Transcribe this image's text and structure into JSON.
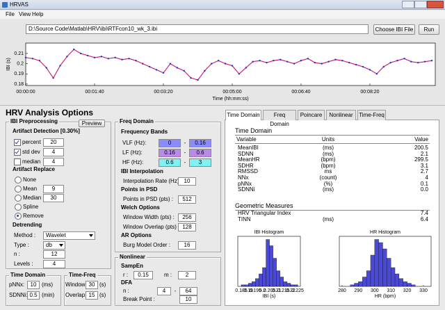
{
  "window_title": "HRVAS",
  "menu": [
    "File",
    "View",
    "Help"
  ],
  "file_path": "D:\\Source Code\\Matlab\\HRV\\ibi\\RTFcon10_wk_3.ibi",
  "buttons": {
    "choose": "Choose IBI File",
    "run": "Run"
  },
  "ibi_plot": {
    "x": [
      0,
      10,
      20,
      30,
      40,
      50,
      60,
      70,
      80,
      90,
      100,
      110,
      120,
      130,
      140,
      150,
      160,
      170,
      180,
      190,
      200,
      210,
      220,
      230,
      240,
      250,
      260,
      270,
      280,
      290,
      300,
      310,
      320,
      330,
      340,
      350,
      360,
      370,
      380,
      390,
      400,
      410,
      420,
      430,
      440,
      450,
      460,
      470,
      480,
      490,
      500,
      510,
      520,
      530,
      540,
      550,
      560,
      570,
      580,
      590
    ],
    "values": [
      0.206,
      0.205,
      0.203,
      0.196,
      0.186,
      0.198,
      0.207,
      0.214,
      0.21,
      0.208,
      0.206,
      0.207,
      0.205,
      0.206,
      0.204,
      0.205,
      0.203,
      0.2,
      0.197,
      0.194,
      0.191,
      0.2,
      0.196,
      0.193,
      0.186,
      0.184,
      0.193,
      0.2,
      0.203,
      0.2,
      0.198,
      0.19,
      0.196,
      0.202,
      0.203,
      0.201,
      0.203,
      0.204,
      0.202,
      0.2,
      0.203,
      0.205,
      0.201,
      0.2,
      0.202,
      0.204,
      0.203,
      0.201,
      0.199,
      0.197,
      0.194,
      0.19,
      0.197,
      0.201,
      0.203,
      0.205,
      0.202,
      0.201,
      0.202,
      0.203
    ],
    "point_color": "#1f2fd0",
    "line_color": "#d0207a",
    "xlim": [
      0,
      595
    ],
    "ylim": [
      0.1786,
      0.2202
    ],
    "xticks": [
      {
        "value": 0,
        "label": "00:00:00"
      },
      {
        "value": 100,
        "label": "00:01:40"
      },
      {
        "value": 200,
        "label": "00:03:20"
      },
      {
        "value": 300,
        "label": "00:05:00"
      },
      {
        "value": 400,
        "label": "00:06:40"
      },
      {
        "value": 500,
        "label": "00:08:20"
      }
    ],
    "yticks": [
      0.18,
      0.19,
      0.2,
      0.21
    ],
    "xlabel": "Time (hh:mm:ss)",
    "ylabel": "IBI (s)"
  },
  "options_title": "HRV Analysis Options",
  "preprocessing": {
    "title": "IBI Preprocessing",
    "preview": "Preview",
    "detection_title": "Artifact Detection [0.30%]",
    "detection": [
      {
        "label": "percent",
        "value": 20,
        "checked": true
      },
      {
        "label": "std dev",
        "value": 4,
        "checked": true
      },
      {
        "label": "median",
        "value": 4,
        "checked": false
      }
    ],
    "replace_title": "Artifact Replace",
    "replace": [
      {
        "label": "None",
        "selected": false
      },
      {
        "label": "Mean",
        "value": 9,
        "selected": false
      },
      {
        "label": "Median",
        "value": 30,
        "selected": false
      },
      {
        "label": "Spline",
        "selected": false
      },
      {
        "label": "Remove",
        "selected": true
      }
    ],
    "detrend_title": "Detrending",
    "detrend": [
      {
        "label": "Method :",
        "value": "Wavelet",
        "dropdown": true
      },
      {
        "label": "Type :",
        "value": "db",
        "dropdown": true
      },
      {
        "label": "n :",
        "value": 12
      },
      {
        "label": "Levels :",
        "value": 4
      }
    ]
  },
  "time_domain_opts": {
    "title": "Time Domain",
    "rows": [
      {
        "label": "pNNx:",
        "value": 10,
        "unit": "(ms)"
      },
      {
        "label": "SDNNi:",
        "value": 0.5,
        "unit": "(min)"
      }
    ]
  },
  "time_freq_opts": {
    "title": "Time-Freq",
    "rows": [
      {
        "label": "Window:",
        "value": 30,
        "unit": "(s)"
      },
      {
        "label": "Overlap:",
        "value": 15,
        "unit": "(s)"
      }
    ]
  },
  "freq_opts": {
    "title": "Freq Domain",
    "bands_title": "Frequency Bands",
    "range_sep": "-",
    "bands": [
      {
        "label": "VLF (Hz):",
        "from": 0,
        "to": 0.16,
        "color": "#8b8bff"
      },
      {
        "label": "LF (Hz):",
        "from": 0.16,
        "to": 0.6,
        "color": "#b98ae8"
      },
      {
        "label": "HF (Hz):",
        "from": 0.6,
        "to": 3,
        "color": "#7ff3f3"
      }
    ],
    "sections": [
      {
        "title": "IBI Interpolation",
        "fields": [
          {
            "label": "Interpolation Rate (Hz) :",
            "value": 10
          }
        ]
      },
      {
        "title": "Points in PSD",
        "fields": [
          {
            "label": "Points in PSD (pts) :",
            "value": 512
          }
        ]
      },
      {
        "title": "Welch Options",
        "fields": [
          {
            "label": "Window Width (pts) :",
            "value": 256
          },
          {
            "label": "Window Overlap (pts) :",
            "value": 128
          }
        ]
      },
      {
        "title": "AR Options",
        "fields": [
          {
            "label": "Burg Model Order :",
            "value": 16
          }
        ]
      }
    ]
  },
  "nonlinear_opts": {
    "title": "Nonlinear",
    "sampen_title": "SampEn",
    "r_label": "r :",
    "r": 0.15,
    "m_label": "m :",
    "m": 2,
    "dfa_title": "DFA",
    "n_label": "n :",
    "n_from": 4,
    "range_sep": "-",
    "n_to": 64,
    "bp_label": "Break Point :",
    "bp": 10
  },
  "tabs": [
    "Time Domain",
    "Freq Domain",
    "Poincare",
    "Nonlinear",
    "Time-Freq"
  ],
  "results": {
    "title": "Time Domain",
    "header": [
      "Variable",
      "Units",
      "Value"
    ],
    "rows": [
      {
        "variable": "MeanIBI",
        "units": "(ms)",
        "value": "200.5"
      },
      {
        "variable": "SDNN",
        "units": "(ms)",
        "value": "2.1"
      },
      {
        "variable": "MeanHR",
        "units": "(bpm)",
        "value": "299.5"
      },
      {
        "variable": "SDHR",
        "units": "(bpm)",
        "value": "3.1"
      },
      {
        "variable": "RMSSD",
        "units": "ms",
        "value": "2.7"
      },
      {
        "variable": "NNx",
        "units": "(count)",
        "value": "4"
      },
      {
        "variable": "pNNx",
        "units": "(%)",
        "value": "0.1"
      },
      {
        "variable": "SDNNi",
        "units": "(ms)",
        "value": "0.0"
      }
    ],
    "geo_title": "Geometric Measures",
    "geo_rows": [
      {
        "variable": "HRV Triangular Index",
        "value": "7.4"
      },
      {
        "variable": "TINN",
        "units": "(ms)",
        "value": "6.4"
      }
    ]
  },
  "ibi_hist": {
    "title": "IBI Histogram",
    "color": "#4a4ad6",
    "bins": [
      0.185,
      0.1875,
      0.19,
      0.1925,
      0.195,
      0.1975,
      0.2,
      0.2025,
      0.205,
      0.2075,
      0.21,
      0.2125,
      0.215,
      0.2175,
      0.22,
      0.2225,
      0.225
    ],
    "counts": [
      1,
      1,
      2,
      3,
      5,
      8,
      12,
      30,
      26,
      18,
      10,
      6,
      3,
      2,
      1,
      1
    ],
    "xlim": [
      0.1825,
      0.2269
    ],
    "ylim": [
      0,
      32
    ],
    "xticks": [
      0.185,
      0.19,
      0.195,
      0.2,
      0.205,
      0.21,
      0.215,
      0.22,
      0.225
    ],
    "xlabel": "IBI (s)"
  },
  "hr_hist": {
    "title": "HR Histogram",
    "color": "#4a4ad6",
    "bins": [
      285,
      287.5,
      290,
      292.5,
      295,
      297.5,
      300,
      302.5,
      305,
      307.5,
      310,
      312.5,
      315,
      317.5,
      320,
      322.5,
      325
    ],
    "counts": [
      1,
      2,
      3,
      6,
      10,
      20,
      30,
      28,
      24,
      18,
      12,
      8,
      5,
      3,
      2,
      1
    ],
    "xlim": [
      278.3,
      334.7
    ],
    "ylim": [
      0,
      32
    ],
    "xticks": [
      280,
      290,
      300,
      310,
      320,
      330
    ],
    "xlabel": "HR (bpm)"
  }
}
